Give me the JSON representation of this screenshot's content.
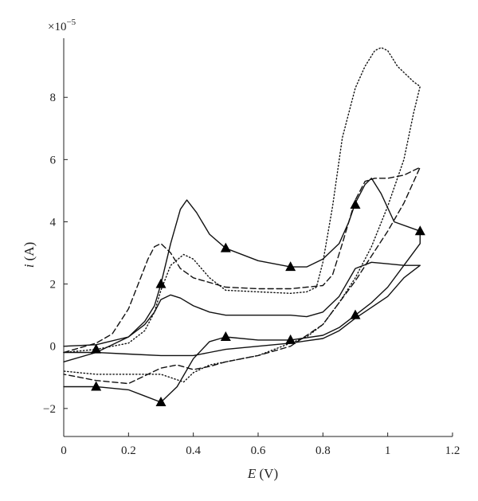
{
  "chart_data": {
    "type": "line",
    "title": "",
    "xlabel_var": "E",
    "xlabel_unit": " (V)",
    "ylabel_var": "i",
    "ylabel_unit": " (A)",
    "y_multiplier_base": "×10",
    "y_multiplier_exp": "−5",
    "xlim": [
      0,
      1.2
    ],
    "ylim": [
      -2.9,
      9.9
    ],
    "x_ticks": [
      0,
      0.2,
      0.4,
      0.6,
      0.8,
      1,
      1.2
    ],
    "x_tick_labels": [
      "0",
      "0.2",
      "0.4",
      "0.6",
      "0.8",
      "1",
      "1.2"
    ],
    "y_ticks": [
      -2,
      0,
      2,
      4,
      6,
      8
    ],
    "y_tick_labels": [
      "−2",
      "0",
      "2",
      "4",
      "6",
      "8"
    ],
    "grid": false,
    "series": [
      {
        "style": "solid",
        "markers": "triangle",
        "x": [
          0.0,
          0.1,
          0.2,
          0.25,
          0.28,
          0.3,
          0.33,
          0.36,
          0.38,
          0.41,
          0.45,
          0.5,
          0.6,
          0.7,
          0.75,
          0.8,
          0.85,
          0.88,
          0.9,
          0.93,
          0.95,
          0.98,
          1.02,
          1.1,
          1.1,
          1.0,
          0.95,
          0.9,
          0.85,
          0.8,
          0.7,
          0.6,
          0.5,
          0.45,
          0.4,
          0.35,
          0.3,
          0.25,
          0.2,
          0.1,
          0.0
        ],
        "y": [
          -0.5,
          -0.2,
          0.3,
          0.8,
          1.3,
          2.0,
          3.3,
          4.4,
          4.7,
          4.3,
          3.6,
          3.15,
          2.75,
          2.55,
          2.55,
          2.8,
          3.3,
          4.0,
          4.6,
          5.2,
          5.4,
          4.9,
          4.0,
          3.7,
          3.3,
          1.9,
          1.4,
          1.0,
          0.6,
          0.35,
          0.2,
          0.2,
          0.3,
          0.15,
          -0.4,
          -1.3,
          -1.8,
          -1.6,
          -1.4,
          -1.3,
          -1.3
        ],
        "marker_x": [
          0.1,
          0.3,
          0.5,
          0.7,
          0.9,
          1.1,
          0.9,
          0.7,
          0.5,
          0.3,
          0.1
        ],
        "marker_y": [
          -0.1,
          2.0,
          3.15,
          2.55,
          4.55,
          3.7,
          1.0,
          0.2,
          0.3,
          -1.8,
          -1.3
        ]
      },
      {
        "style": "solid",
        "markers": "none",
        "x": [
          0.0,
          0.1,
          0.2,
          0.25,
          0.28,
          0.3,
          0.33,
          0.36,
          0.4,
          0.45,
          0.5,
          0.6,
          0.7,
          0.75,
          0.8,
          0.85,
          0.9,
          0.95,
          1.0,
          1.05,
          1.1,
          1.05,
          1.0,
          0.95,
          0.9,
          0.85,
          0.8,
          0.7,
          0.6,
          0.5,
          0.45,
          0.4,
          0.35,
          0.3,
          0.2,
          0.1,
          0.0
        ],
        "y": [
          0.0,
          0.05,
          0.3,
          0.7,
          1.1,
          1.5,
          1.65,
          1.55,
          1.3,
          1.1,
          1.0,
          1.0,
          1.0,
          0.95,
          1.1,
          1.6,
          2.5,
          2.7,
          2.65,
          2.6,
          2.6,
          2.2,
          1.6,
          1.25,
          0.9,
          0.5,
          0.25,
          0.1,
          0.0,
          -0.1,
          -0.2,
          -0.3,
          -0.3,
          -0.3,
          -0.25,
          -0.2,
          -0.2
        ]
      },
      {
        "style": "dashed",
        "markers": "none",
        "x": [
          0.0,
          0.1,
          0.15,
          0.2,
          0.23,
          0.26,
          0.28,
          0.3,
          0.33,
          0.36,
          0.4,
          0.5,
          0.6,
          0.7,
          0.75,
          0.8,
          0.83,
          0.86,
          0.9,
          0.93,
          0.96,
          1.0,
          1.05,
          1.1,
          1.05,
          1.0,
          0.95,
          0.9,
          0.85,
          0.8,
          0.7,
          0.6,
          0.5,
          0.45,
          0.4,
          0.35,
          0.3,
          0.2,
          0.1,
          0.0
        ],
        "y": [
          -0.2,
          0.1,
          0.4,
          1.2,
          2.0,
          2.8,
          3.2,
          3.3,
          3.0,
          2.5,
          2.2,
          1.9,
          1.85,
          1.85,
          1.9,
          1.95,
          2.3,
          3.3,
          4.7,
          5.3,
          5.4,
          5.4,
          5.5,
          5.75,
          4.6,
          3.7,
          2.9,
          2.1,
          1.4,
          0.7,
          0.0,
          -0.3,
          -0.5,
          -0.65,
          -0.75,
          -0.6,
          -0.7,
          -1.2,
          -1.1,
          -0.9
        ]
      },
      {
        "style": "dotted",
        "markers": "none",
        "x": [
          0.0,
          0.1,
          0.2,
          0.25,
          0.28,
          0.3,
          0.33,
          0.37,
          0.4,
          0.45,
          0.5,
          0.6,
          0.7,
          0.75,
          0.78,
          0.8,
          0.83,
          0.86,
          0.9,
          0.93,
          0.96,
          0.98,
          1.0,
          1.03,
          1.08,
          1.1,
          1.08,
          1.05,
          1.0,
          0.95,
          0.9,
          0.85,
          0.8,
          0.75,
          0.7,
          0.6,
          0.5,
          0.45,
          0.4,
          0.37,
          0.3,
          0.2,
          0.1,
          0.0
        ],
        "y": [
          -0.2,
          -0.1,
          0.1,
          0.5,
          1.1,
          1.8,
          2.6,
          2.95,
          2.8,
          2.2,
          1.8,
          1.75,
          1.7,
          1.75,
          1.9,
          2.7,
          4.5,
          6.7,
          8.3,
          9.0,
          9.5,
          9.6,
          9.5,
          9.0,
          8.5,
          8.35,
          7.5,
          6.0,
          4.5,
          3.2,
          2.2,
          1.4,
          0.7,
          0.3,
          0.1,
          -0.3,
          -0.5,
          -0.6,
          -0.85,
          -1.15,
          -0.9,
          -0.9,
          -0.9,
          -0.8
        ]
      }
    ]
  }
}
